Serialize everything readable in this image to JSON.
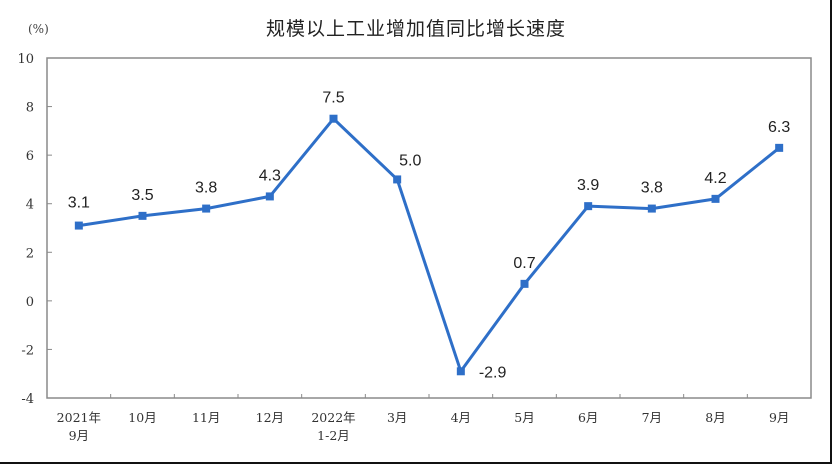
{
  "chart_data": {
    "type": "line",
    "title": "规模以上工业增加值同比增长速度",
    "ylabel": "(%)",
    "xlabel": "",
    "ylim": [
      -4,
      10
    ],
    "yticks": [
      10,
      8,
      6,
      4,
      2,
      0,
      -2,
      -4
    ],
    "grid": false,
    "legend": null,
    "categories": [
      "2021年9月",
      "10月",
      "11月",
      "12月",
      "2022年1-2月",
      "3月",
      "4月",
      "5月",
      "6月",
      "7月",
      "8月",
      "9月"
    ],
    "category_lines": [
      [
        "2021年",
        "9月"
      ],
      [
        "10月"
      ],
      [
        "11月"
      ],
      [
        "12月"
      ],
      [
        "2022年",
        "1-2月"
      ],
      [
        "3月"
      ],
      [
        "4月"
      ],
      [
        "5月"
      ],
      [
        "6月"
      ],
      [
        "7月"
      ],
      [
        "8月"
      ],
      [
        "9月"
      ]
    ],
    "series": [
      {
        "name": "规模以上工业增加值同比增长速度",
        "color": "#2e6fc8",
        "values": [
          3.1,
          3.5,
          3.8,
          4.3,
          7.5,
          5.0,
          -2.9,
          0.7,
          3.9,
          3.8,
          4.2,
          6.3
        ],
        "labels": [
          "3.1",
          "3.5",
          "3.8",
          "4.3",
          "7.5",
          "5.0",
          "-2.9",
          "0.7",
          "3.9",
          "3.8",
          "4.2",
          "6.3"
        ]
      }
    ]
  }
}
